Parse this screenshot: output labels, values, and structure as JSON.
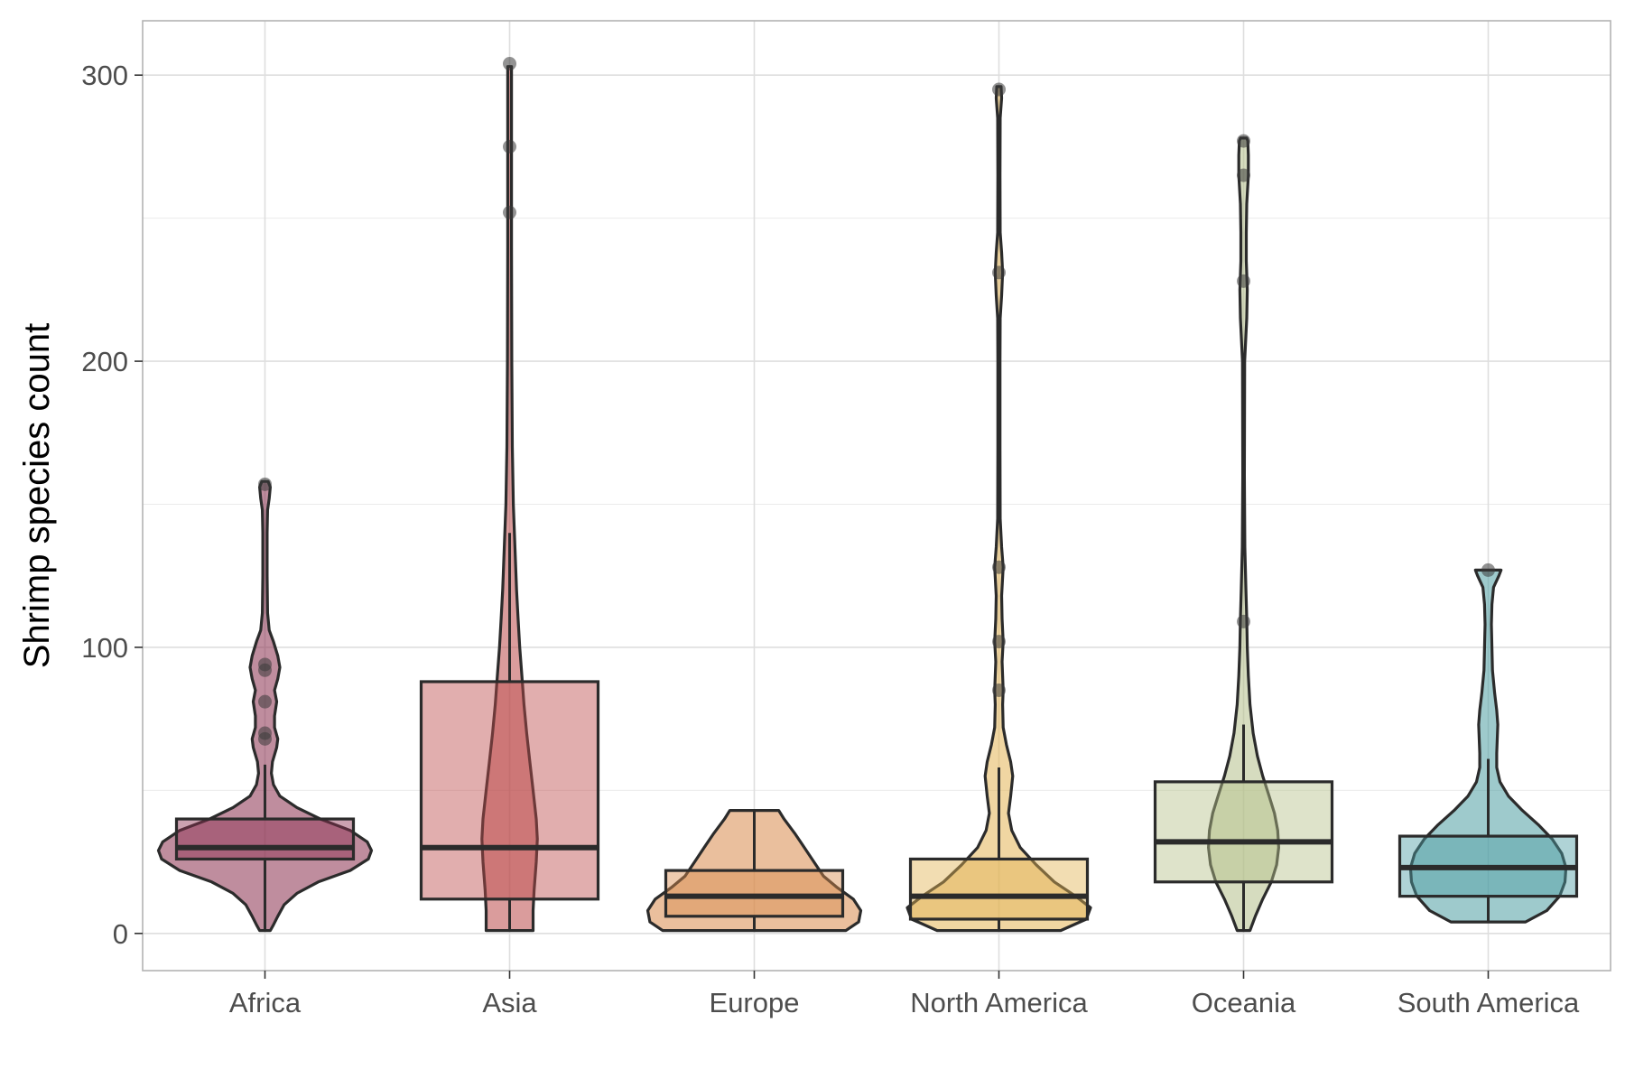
{
  "chart_data": {
    "type": "violin-box",
    "title": "",
    "xlabel": "",
    "ylabel": "Shrimp species count",
    "ylim": [
      -13,
      319
    ],
    "yticks": [
      0,
      100,
      200,
      300
    ],
    "grid": true,
    "legend": "none",
    "categories": [
      "Africa",
      "Asia",
      "Europe",
      "North America",
      "Oceania",
      "South America"
    ],
    "colors": [
      "#8B2F4F",
      "#BC4B4B",
      "#D98B4D",
      "#E3B455",
      "#B5C08A",
      "#4E9EA3"
    ],
    "series": [
      {
        "name": "Africa",
        "box": {
          "q1": 26,
          "median": 30,
          "q3": 40,
          "whisker_low": 1,
          "whisker_high": 59
        },
        "outliers": [
          68,
          70,
          81,
          92,
          94,
          157
        ],
        "violin_profile": [
          [
            1,
            0.05
          ],
          [
            3,
            0.08
          ],
          [
            6,
            0.12
          ],
          [
            10,
            0.18
          ],
          [
            14,
            0.3
          ],
          [
            18,
            0.5
          ],
          [
            22,
            0.8
          ],
          [
            26,
            0.97
          ],
          [
            29,
            1.0
          ],
          [
            32,
            0.96
          ],
          [
            36,
            0.8
          ],
          [
            40,
            0.52
          ],
          [
            44,
            0.3
          ],
          [
            48,
            0.14
          ],
          [
            52,
            0.08
          ],
          [
            56,
            0.06
          ],
          [
            60,
            0.07
          ],
          [
            65,
            0.11
          ],
          [
            68,
            0.12
          ],
          [
            72,
            0.09
          ],
          [
            76,
            0.09
          ],
          [
            81,
            0.11
          ],
          [
            85,
            0.09
          ],
          [
            89,
            0.12
          ],
          [
            93,
            0.14
          ],
          [
            97,
            0.12
          ],
          [
            102,
            0.08
          ],
          [
            106,
            0.04
          ],
          [
            112,
            0.025
          ],
          [
            125,
            0.02
          ],
          [
            140,
            0.02
          ],
          [
            148,
            0.025
          ],
          [
            152,
            0.04
          ],
          [
            156,
            0.05
          ],
          [
            158,
            0.03
          ]
        ]
      },
      {
        "name": "Asia",
        "box": {
          "q1": 12,
          "median": 30,
          "q3": 88,
          "whisker_low": 1,
          "whisker_high": 140
        },
        "outliers": [
          252,
          275,
          304
        ],
        "violin_profile": [
          [
            1,
            0.22
          ],
          [
            8,
            0.22
          ],
          [
            15,
            0.23
          ],
          [
            25,
            0.25
          ],
          [
            33,
            0.26
          ],
          [
            40,
            0.25
          ],
          [
            50,
            0.22
          ],
          [
            60,
            0.19
          ],
          [
            70,
            0.16
          ],
          [
            80,
            0.135
          ],
          [
            90,
            0.115
          ],
          [
            100,
            0.095
          ],
          [
            110,
            0.08
          ],
          [
            120,
            0.065
          ],
          [
            135,
            0.05
          ],
          [
            150,
            0.035
          ],
          [
            170,
            0.025
          ],
          [
            200,
            0.02
          ],
          [
            240,
            0.018
          ],
          [
            270,
            0.018
          ],
          [
            290,
            0.018
          ],
          [
            303,
            0.018
          ]
        ]
      },
      {
        "name": "Europe",
        "box": {
          "q1": 6,
          "median": 13,
          "q3": 22,
          "whisker_low": 1,
          "whisker_high": 43
        },
        "outliers": [],
        "violin_profile": [
          [
            1,
            0.86
          ],
          [
            4,
            0.98
          ],
          [
            8,
            1.0
          ],
          [
            12,
            0.93
          ],
          [
            16,
            0.78
          ],
          [
            20,
            0.65
          ],
          [
            25,
            0.56
          ],
          [
            30,
            0.47
          ],
          [
            35,
            0.38
          ],
          [
            40,
            0.28
          ],
          [
            43,
            0.23
          ]
        ]
      },
      {
        "name": "North America",
        "box": {
          "q1": 5,
          "median": 13,
          "q3": 26,
          "whisker_low": 1,
          "whisker_high": 58
        },
        "outliers": [
          85,
          102,
          128,
          231,
          295
        ],
        "violin_profile": [
          [
            1,
            0.58
          ],
          [
            5,
            0.82
          ],
          [
            9,
            0.86
          ],
          [
            13,
            0.72
          ],
          [
            18,
            0.52
          ],
          [
            24,
            0.35
          ],
          [
            30,
            0.2
          ],
          [
            36,
            0.12
          ],
          [
            42,
            0.09
          ],
          [
            48,
            0.11
          ],
          [
            55,
            0.13
          ],
          [
            60,
            0.11
          ],
          [
            66,
            0.07
          ],
          [
            72,
            0.04
          ],
          [
            80,
            0.035
          ],
          [
            85,
            0.04
          ],
          [
            90,
            0.035
          ],
          [
            95,
            0.03
          ],
          [
            102,
            0.04
          ],
          [
            110,
            0.03
          ],
          [
            118,
            0.025
          ],
          [
            128,
            0.04
          ],
          [
            135,
            0.025
          ],
          [
            145,
            0.012
          ],
          [
            170,
            0.01
          ],
          [
            200,
            0.01
          ],
          [
            215,
            0.012
          ],
          [
            223,
            0.025
          ],
          [
            231,
            0.035
          ],
          [
            238,
            0.025
          ],
          [
            245,
            0.012
          ],
          [
            265,
            0.01
          ],
          [
            285,
            0.012
          ],
          [
            292,
            0.025
          ],
          [
            296,
            0.02
          ]
        ]
      },
      {
        "name": "Oceania",
        "box": {
          "q1": 18,
          "median": 32,
          "q3": 53,
          "whisker_low": 1,
          "whisker_high": 73
        },
        "outliers": [
          109,
          228,
          265,
          277
        ],
        "violin_profile": [
          [
            1,
            0.06
          ],
          [
            6,
            0.11
          ],
          [
            12,
            0.18
          ],
          [
            18,
            0.26
          ],
          [
            24,
            0.31
          ],
          [
            30,
            0.33
          ],
          [
            36,
            0.32
          ],
          [
            42,
            0.29
          ],
          [
            48,
            0.24
          ],
          [
            55,
            0.18
          ],
          [
            62,
            0.13
          ],
          [
            70,
            0.09
          ],
          [
            80,
            0.06
          ],
          [
            90,
            0.045
          ],
          [
            100,
            0.035
          ],
          [
            110,
            0.03
          ],
          [
            120,
            0.022
          ],
          [
            135,
            0.012
          ],
          [
            160,
            0.008
          ],
          [
            200,
            0.01
          ],
          [
            215,
            0.03
          ],
          [
            225,
            0.035
          ],
          [
            235,
            0.025
          ],
          [
            245,
            0.025
          ],
          [
            255,
            0.03
          ],
          [
            265,
            0.045
          ],
          [
            272,
            0.045
          ],
          [
            277,
            0.04
          ],
          [
            278,
            0.03
          ]
        ]
      },
      {
        "name": "South America",
        "box": {
          "q1": 13,
          "median": 23,
          "q3": 34,
          "whisker_low": 4,
          "whisker_high": 61
        },
        "outliers": [
          127
        ],
        "violin_profile": [
          [
            4,
            0.35
          ],
          [
            8,
            0.55
          ],
          [
            13,
            0.67
          ],
          [
            18,
            0.72
          ],
          [
            23,
            0.73
          ],
          [
            28,
            0.69
          ],
          [
            33,
            0.6
          ],
          [
            38,
            0.47
          ],
          [
            43,
            0.32
          ],
          [
            48,
            0.19
          ],
          [
            53,
            0.11
          ],
          [
            58,
            0.08
          ],
          [
            63,
            0.08
          ],
          [
            68,
            0.085
          ],
          [
            73,
            0.09
          ],
          [
            78,
            0.08
          ],
          [
            84,
            0.06
          ],
          [
            92,
            0.04
          ],
          [
            100,
            0.035
          ],
          [
            108,
            0.03
          ],
          [
            115,
            0.035
          ],
          [
            121,
            0.05
          ],
          [
            125,
            0.1
          ],
          [
            127,
            0.12
          ]
        ]
      }
    ]
  }
}
